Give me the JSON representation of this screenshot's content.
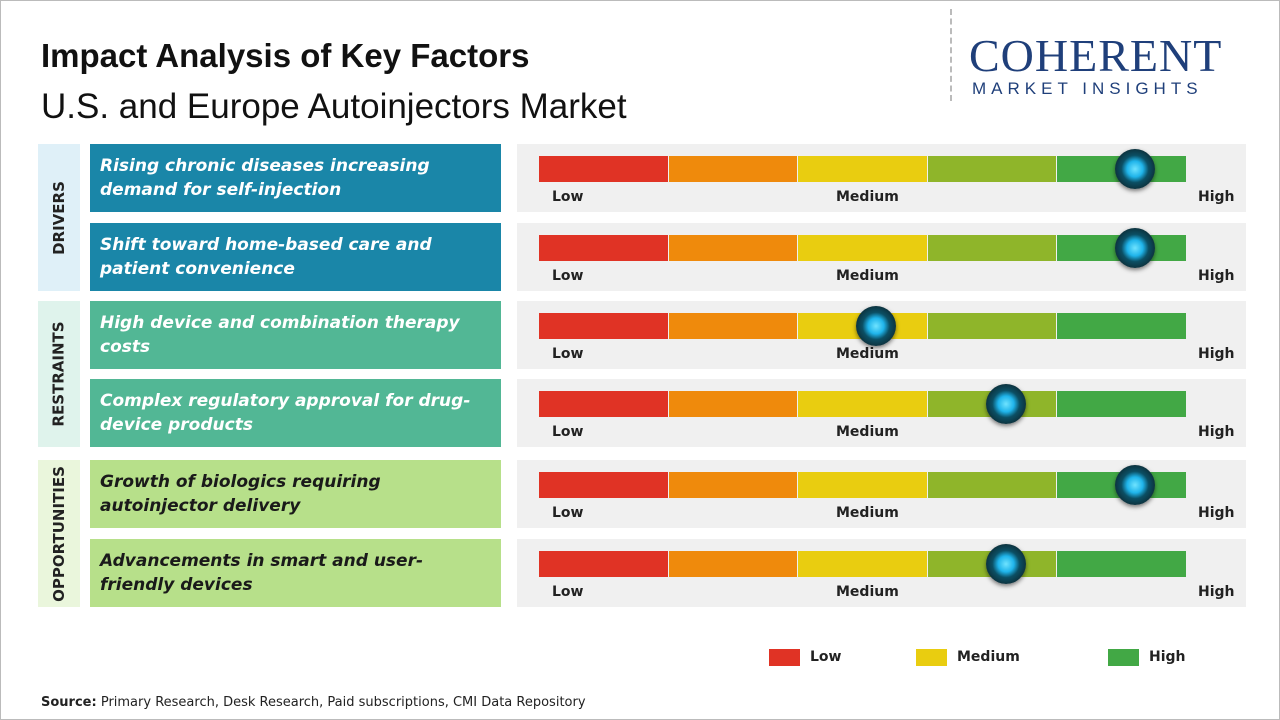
{
  "header": {
    "title": "Impact Analysis of Key Factors",
    "subtitle": "U.S. and Europe Autoinjectors Market"
  },
  "logo": {
    "name": "COHERENT",
    "tagline": "MARKET INSIGHTS"
  },
  "scale": {
    "segments": [
      "#e03325",
      "#ef8a0c",
      "#e9cd10",
      "#8fb52a",
      "#42a845"
    ],
    "low": "Low",
    "medium": "Medium",
    "high": "High"
  },
  "groups": [
    {
      "label": "DRIVERS",
      "factors": [
        {
          "text": "Rising chronic diseases increasing demand for self-injection",
          "impact": 4.6
        },
        {
          "text": "Shift toward home-based care and patient convenience",
          "impact": 4.6
        }
      ]
    },
    {
      "label": "RESTRAINTS",
      "factors": [
        {
          "text": "High device and combination therapy costs",
          "impact": 2.6
        },
        {
          "text": "Complex regulatory approval for drug-device products",
          "impact": 3.6
        }
      ]
    },
    {
      "label": "OPPORTUNITIES",
      "factors": [
        {
          "text": "Growth of biologics requiring autoinjector delivery",
          "impact": 4.6
        },
        {
          "text": "Advancements in smart and user-friendly devices",
          "impact": 3.6
        }
      ]
    }
  ],
  "legend": [
    {
      "label": "Low",
      "color": "#e03325"
    },
    {
      "label": "Medium",
      "color": "#e9cd10"
    },
    {
      "label": "High",
      "color": "#42a845"
    }
  ],
  "source": {
    "label": "Source:",
    "text": "Primary Research, Desk Research, Paid subscriptions, CMI Data Repository"
  }
}
